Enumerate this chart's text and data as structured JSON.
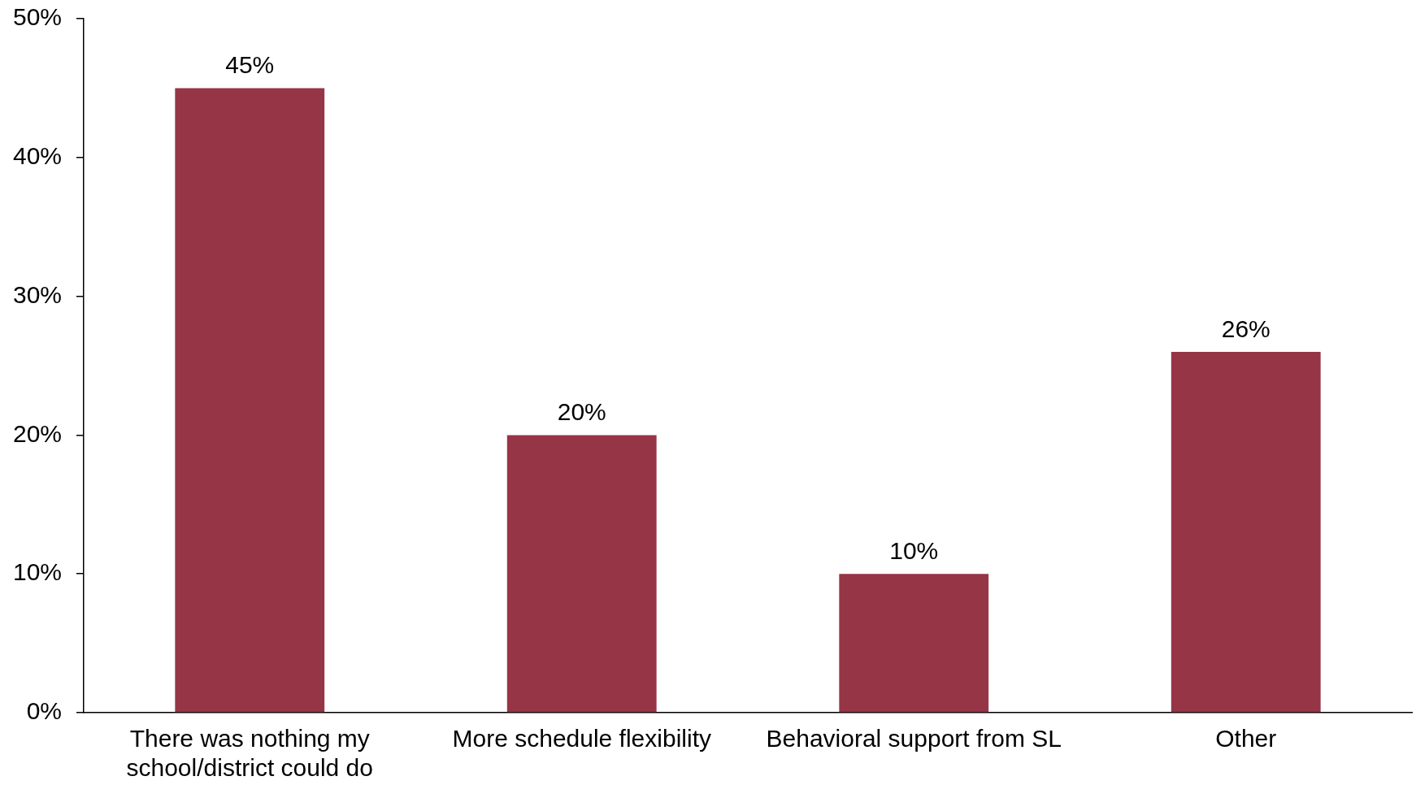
{
  "chart_data": {
    "type": "bar",
    "categories": [
      "There was nothing my school/district could do",
      "More schedule flexibility",
      "Behavioral support from SL",
      "Other"
    ],
    "values": [
      45,
      20,
      10,
      26
    ],
    "value_labels": [
      "45%",
      "20%",
      "10%",
      "26%"
    ],
    "color": "#963546",
    "ylim": [
      0,
      50
    ],
    "yticks": [
      {
        "value": 0,
        "label": "0%"
      },
      {
        "value": 10,
        "label": "10%"
      },
      {
        "value": 20,
        "label": "20%"
      },
      {
        "value": 30,
        "label": "30%"
      },
      {
        "value": 40,
        "label": "40%"
      },
      {
        "value": 50,
        "label": "50%"
      }
    ]
  }
}
